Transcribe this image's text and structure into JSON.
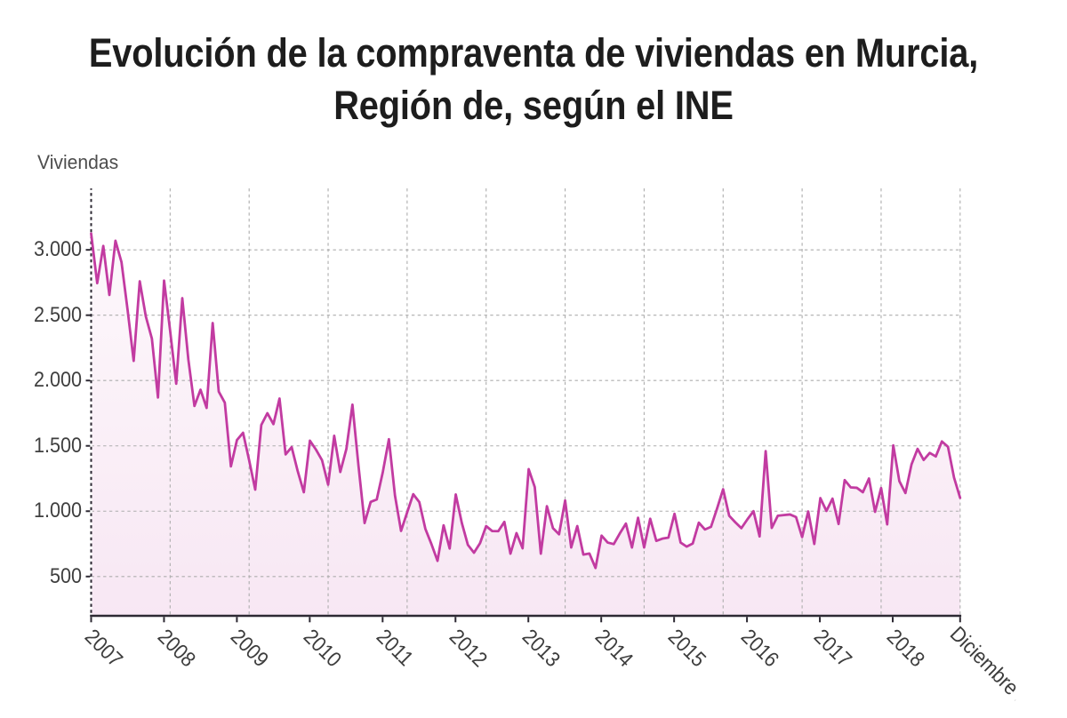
{
  "title": {
    "line1": "Evolución de la compraventa de viviendas en Murcia,",
    "line2": "Región de, según el INE"
  },
  "colors": {
    "line": "#c23ba1",
    "area_top": "rgba(194,58,160,0.035)",
    "area_bottom": "rgba(194,58,160,0.12)",
    "grid": "#adadad",
    "axis": "#2d2933",
    "title_text": "#1d1d1d",
    "tick_text": "#3f3f3f",
    "background": "#ffffff"
  },
  "chart_data": {
    "type": "area",
    "title": "Evolución de la compraventa de viviendas en Murcia, Región de, según el INE",
    "ylabel": "Viviendas",
    "xlabel": "",
    "grid": true,
    "legend": false,
    "y_axis": {
      "tick_values": [
        3000,
        2500,
        2000,
        1500,
        1000,
        500
      ],
      "tick_labels": [
        "3.000",
        "2.500",
        "2.000",
        "1.500",
        "1.000",
        "500"
      ],
      "min": 199,
      "max": 3470
    },
    "x_axis": {
      "tick_labels": [
        "2007",
        "2008",
        "2009",
        "2010",
        "2011",
        "2012",
        "2013",
        "2014",
        "2015",
        "2016",
        "2017",
        "2018",
        "Diciembre 2018"
      ],
      "start": "2007-01",
      "end": "2018-12",
      "interval": "month"
    },
    "series": [
      {
        "name": "Viviendas",
        "start_month": "2007-01",
        "frequency": "monthly",
        "values": [
          3125,
          2745,
          3030,
          2655,
          3070,
          2905,
          2540,
          2150,
          2760,
          2490,
          2320,
          1870,
          2765,
          2380,
          1975,
          2630,
          2160,
          1805,
          1930,
          1790,
          2440,
          1915,
          1830,
          1343,
          1545,
          1600,
          1390,
          1165,
          1660,
          1750,
          1666,
          1862,
          1435,
          1490,
          1305,
          1145,
          1540,
          1471,
          1390,
          1203,
          1577,
          1300,
          1476,
          1815,
          1345,
          909,
          1071,
          1090,
          1300,
          1551,
          1120,
          849,
          990,
          1130,
          1070,
          865,
          748,
          620,
          892,
          714,
          1128,
          910,
          742,
          682,
          755,
          886,
          848,
          847,
          918,
          675,
          832,
          716,
          1322,
          1185,
          675,
          1038,
          870,
          823,
          1082,
          722,
          886,
          668,
          676,
          565,
          813,
          760,
          748,
          830,
          905,
          722,
          950,
          722,
          942,
          773,
          790,
          798,
          980,
          760,
          729,
          753,
          912,
          860,
          880,
          1020,
          1168,
          965,
          915,
          870,
          938,
          1000,
          807,
          1460,
          872,
          965,
          970,
          975,
          955,
          802,
          998,
          749,
          1100,
          1002,
          1096,
          902,
          1238,
          1182,
          1179,
          1145,
          1250,
          995,
          1177,
          899,
          1504,
          1230,
          1139,
          1358,
          1477,
          1392,
          1446,
          1419,
          1534,
          1493,
          1257,
          1102
        ]
      }
    ]
  }
}
